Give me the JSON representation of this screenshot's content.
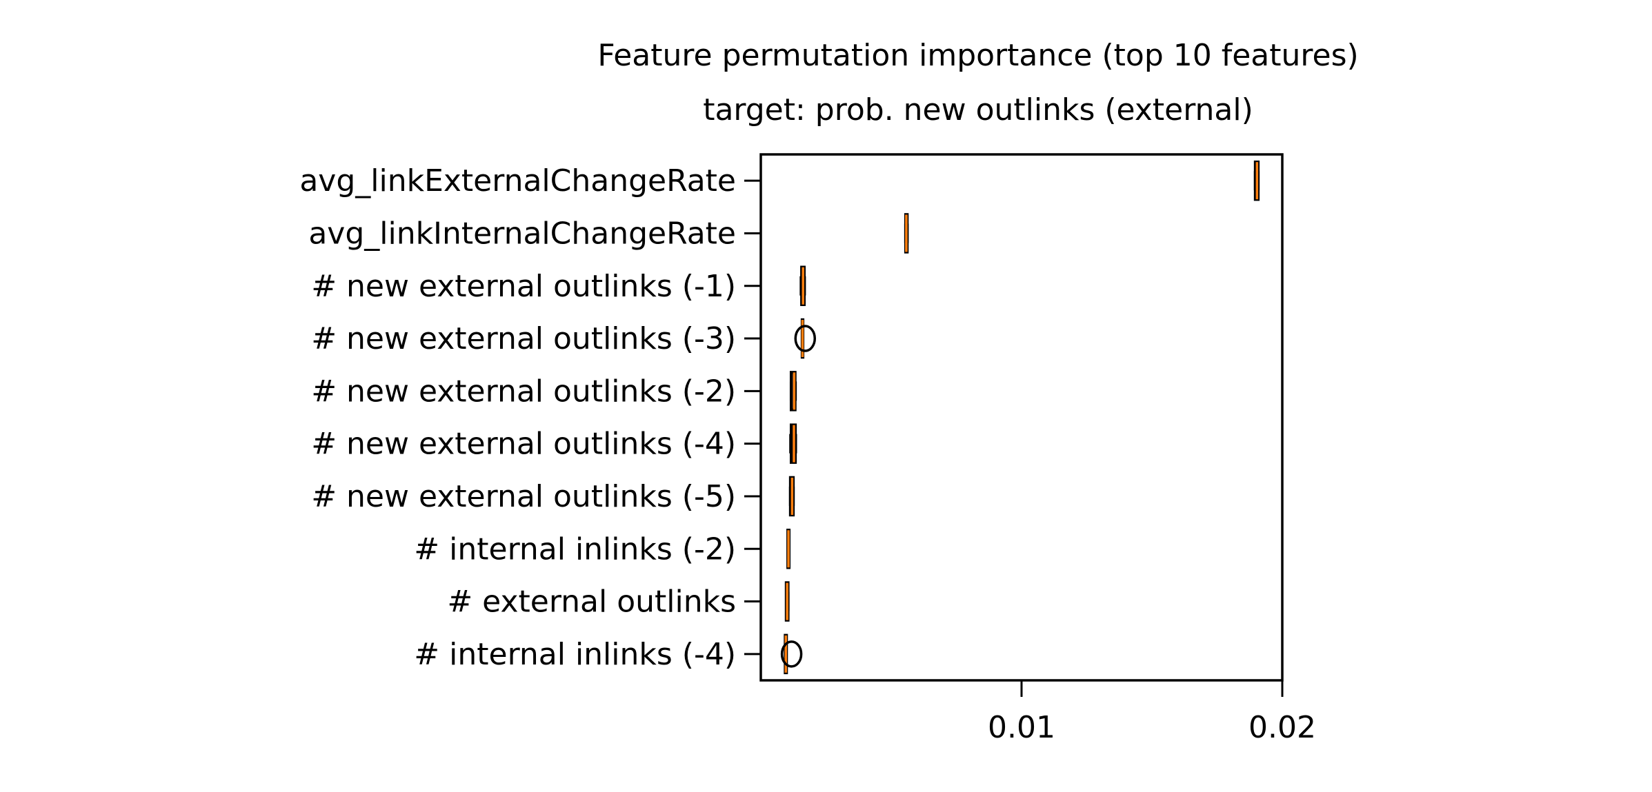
{
  "chart_data": {
    "type": "boxplot",
    "orientation": "horizontal",
    "title": "Feature permutation importance (top 10 features)",
    "subtitle": "target: prob. new outlinks (external)",
    "xlabel": "",
    "ylabel": "",
    "xlim": [
      0.0,
      0.02
    ],
    "xticks": [
      0.01,
      0.02
    ],
    "xtick_labels": [
      "0.01",
      "0.02"
    ],
    "grid": false,
    "legend": "none",
    "colors": {
      "box": "#000000",
      "median": "#ff7f0e",
      "frame": "#000000"
    },
    "categories": [
      "avg_linkExternalChangeRate",
      "avg_linkInternalChangeRate",
      "# new external outlinks (-1)",
      "# new external outlinks (-3)",
      "# new external outlinks (-2)",
      "# new external outlinks (-4)",
      "# new external outlinks (-5)",
      "# internal inlinks (-2)",
      "# external outlinks",
      "# internal inlinks (-4)"
    ],
    "boxes": [
      {
        "whislo": 0.01895,
        "q1": 0.01897,
        "med": 0.01903,
        "q3": 0.01907,
        "whishi": 0.01909,
        "fliers": []
      },
      {
        "whislo": 0.00554,
        "q1": 0.00556,
        "med": 0.00558,
        "q3": 0.00561,
        "whishi": 0.00563,
        "fliers": []
      },
      {
        "whislo": 0.00153,
        "q1": 0.00157,
        "med": 0.00162,
        "q3": 0.00166,
        "whishi": 0.00169,
        "fliers": []
      },
      {
        "whislo": 0.00158,
        "q1": 0.00159,
        "med": 0.0016,
        "q3": 0.00161,
        "whishi": 0.00162,
        "fliers": [
          0.0017
        ]
      },
      {
        "whislo": 0.00115,
        "q1": 0.00117,
        "med": 0.00128,
        "q3": 0.00131,
        "whishi": 0.00134,
        "fliers": []
      },
      {
        "whislo": 0.00113,
        "q1": 0.00117,
        "med": 0.00127,
        "q3": 0.00132,
        "whishi": 0.00135,
        "fliers": []
      },
      {
        "whislo": 0.00112,
        "q1": 0.00114,
        "med": 0.0012,
        "q3": 0.00124,
        "whishi": 0.00126,
        "fliers": []
      },
      {
        "whislo": 0.00103,
        "q1": 0.00104,
        "med": 0.00106,
        "q3": 0.00108,
        "whishi": 0.00109,
        "fliers": []
      },
      {
        "whislo": 0.00097,
        "q1": 0.00098,
        "med": 0.00101,
        "q3": 0.00104,
        "whishi": 0.00106,
        "fliers": []
      },
      {
        "whislo": 0.00093,
        "q1": 0.00094,
        "med": 0.00096,
        "q3": 0.00098,
        "whishi": 0.00099,
        "fliers": [
          0.00118
        ]
      }
    ]
  }
}
